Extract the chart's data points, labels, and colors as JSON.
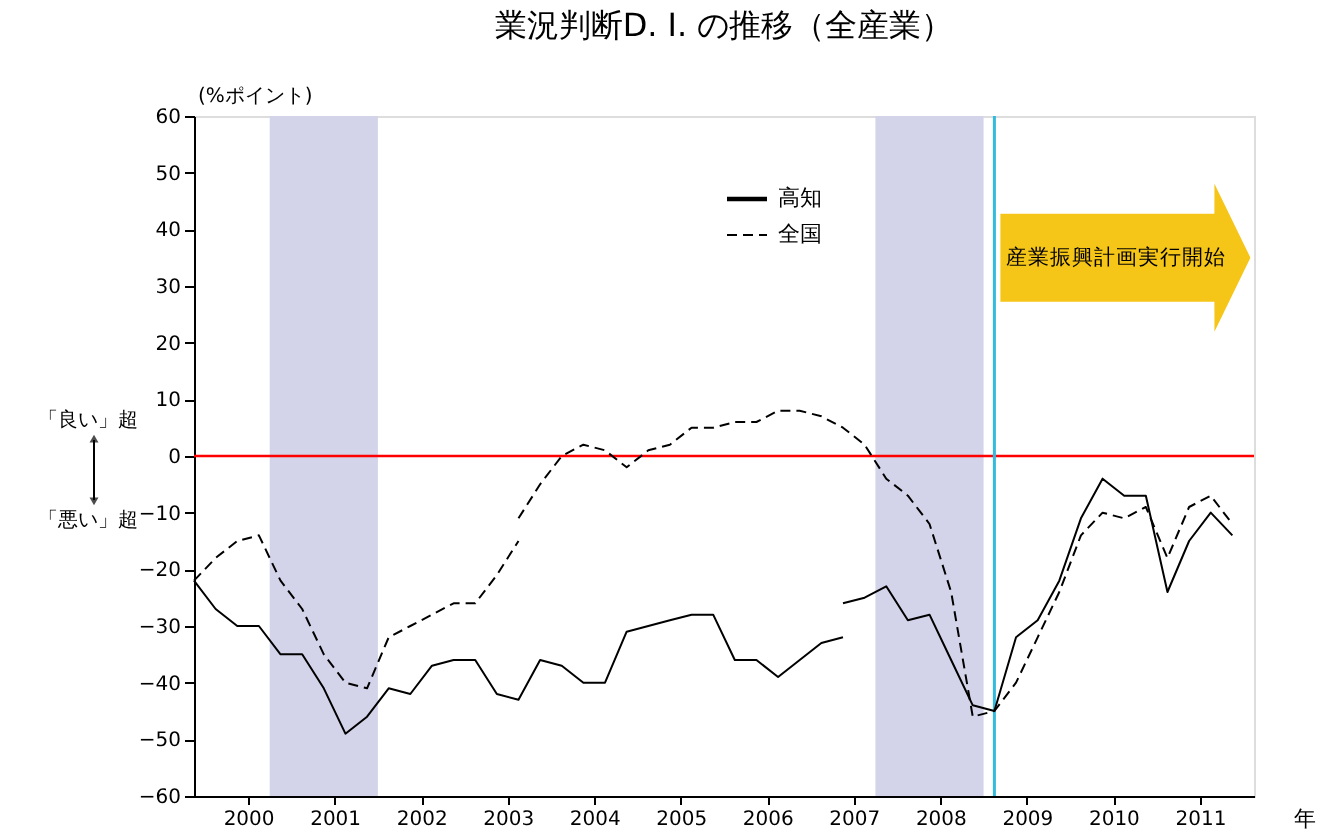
{
  "chart_data": {
    "type": "line",
    "title": "業況判断D. I. の推移（全産業）",
    "ylabel": "(%ポイント)",
    "xlabel": "年",
    "xlim": [
      1999.375,
      2011.625
    ],
    "ylim": [
      -60,
      60
    ],
    "yticks": [
      -60,
      -50,
      -40,
      -30,
      -20,
      -10,
      0,
      10,
      20,
      30,
      40,
      50,
      60
    ],
    "xticks": [
      2000,
      2001,
      2002,
      2003,
      2004,
      2005,
      2006,
      2007,
      2008,
      2009,
      2010,
      2011
    ],
    "series": [
      {
        "name": "高知",
        "color": "#000000",
        "line_style": "solid",
        "x": [
          1999.375,
          1999.625,
          1999.875,
          2000.125,
          2000.375,
          2000.625,
          2000.875,
          2001.125,
          2001.375,
          2001.625,
          2001.875,
          2002.125,
          2002.375,
          2002.625,
          2002.875,
          2003.125,
          2003.375,
          2003.625,
          2003.875,
          2004.125,
          2004.375,
          2004.625,
          2004.875,
          2005.125,
          2005.375,
          2005.625,
          2005.875,
          2006.125,
          2006.375,
          2006.625,
          2006.875,
          null,
          2006.875,
          2007.125,
          2007.375,
          2007.625,
          2007.875,
          2008.125,
          2008.375,
          2008.625,
          2008.875,
          2009.125,
          2009.375,
          2009.625,
          2009.875,
          2010.125,
          2010.375,
          2010.625,
          2010.875,
          2011.125,
          2011.375
        ],
        "values": [
          -22,
          -27,
          -30,
          -30,
          -35,
          -35,
          -41,
          -49,
          -46,
          -41,
          -42,
          -37,
          -36,
          -36,
          -42,
          -43,
          -36,
          -37,
          -40,
          -40,
          -31,
          -30,
          -29,
          -28,
          -28,
          -36,
          -36,
          -39,
          -36,
          -33,
          -32,
          null,
          -26,
          -25,
          -23,
          -29,
          -28,
          -36,
          -44,
          -45,
          -32,
          -29,
          -22,
          -11,
          -4,
          -7,
          -7,
          -24,
          -15,
          -10,
          -14
        ]
      },
      {
        "name": "全国",
        "color": "#000000",
        "line_style": "dashed",
        "x": [
          1999.375,
          1999.625,
          1999.875,
          2000.125,
          2000.375,
          2000.625,
          2000.875,
          2001.125,
          2001.375,
          2001.625,
          2001.875,
          2002.125,
          2002.375,
          2002.625,
          2002.875,
          2003.125,
          null,
          2003.125,
          2003.375,
          2003.625,
          2003.875,
          2004.125,
          2004.375,
          2004.625,
          2004.875,
          2005.125,
          2005.375,
          2005.625,
          2005.875,
          2006.125,
          2006.375,
          2006.625,
          2006.875,
          2007.125,
          2007.375,
          2007.625,
          2007.875,
          2008.125,
          2008.375,
          2008.625,
          2008.875,
          2009.125,
          2009.375,
          2009.625,
          2009.875,
          2010.125,
          2010.375,
          2010.625,
          2010.875,
          2011.125,
          2011.375
        ],
        "values": [
          -22,
          -18,
          -15,
          -14,
          -22,
          -27,
          -35,
          -40,
          -41,
          -32,
          -30,
          -28,
          -26,
          -26,
          -21,
          -15,
          null,
          -11,
          -5,
          0,
          2,
          1,
          -2,
          1,
          2,
          5,
          5,
          6,
          6,
          8,
          8,
          7,
          5,
          2,
          -4,
          -7,
          -12,
          -24,
          -46,
          -45,
          -40,
          -32,
          -24,
          -14,
          -10,
          -11,
          -9,
          -18,
          -9,
          -7,
          -12
        ]
      }
    ],
    "ref_lines": [
      {
        "axis": "y",
        "value": 0,
        "color": "#ff0000"
      },
      {
        "axis": "x",
        "value": 2008.625,
        "color": "#33bbdd"
      }
    ],
    "bands": [
      {
        "axis": "x",
        "from": 2000.25,
        "to": 2001.5,
        "color": "#d3d3ea"
      },
      {
        "axis": "x",
        "from": 2007.25,
        "to": 2008.5,
        "color": "#d3d3ea"
      }
    ],
    "annotations": [
      "「良い」超",
      "「悪い」超",
      {
        "text": "産業振興計画実行開始",
        "x": 2008.625,
        "y": 35
      }
    ],
    "legend": "top right",
    "grid": false,
    "marker": "none"
  }
}
